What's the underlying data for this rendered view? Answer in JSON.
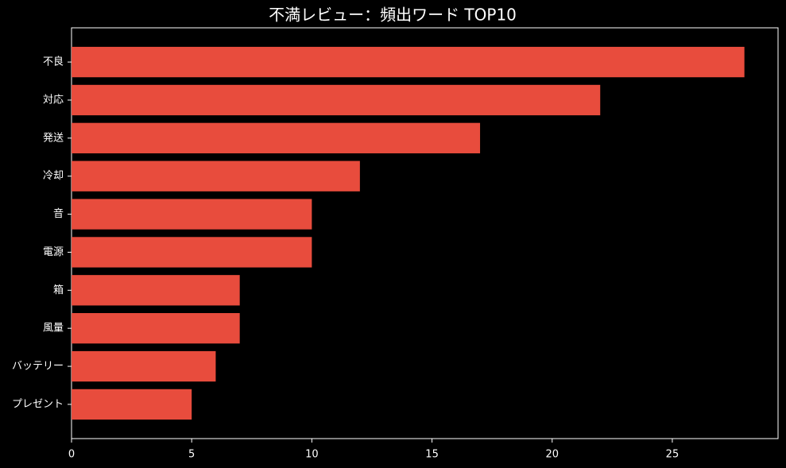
{
  "chart_data": {
    "type": "barh",
    "title": "不満レビュー：頻出ワード TOP10",
    "categories": [
      "不良",
      "対応",
      "発送",
      "冷却",
      "音",
      "電源",
      "箱",
      "風量",
      "バッテリー",
      "プレゼント"
    ],
    "values": [
      28,
      22,
      17,
      12,
      10,
      10,
      7,
      7,
      6,
      5
    ],
    "color": "#e84c3d",
    "xlim": [
      0,
      29.4
    ],
    "xticks": [
      0,
      5,
      10,
      15,
      20,
      25
    ],
    "grid": false
  }
}
